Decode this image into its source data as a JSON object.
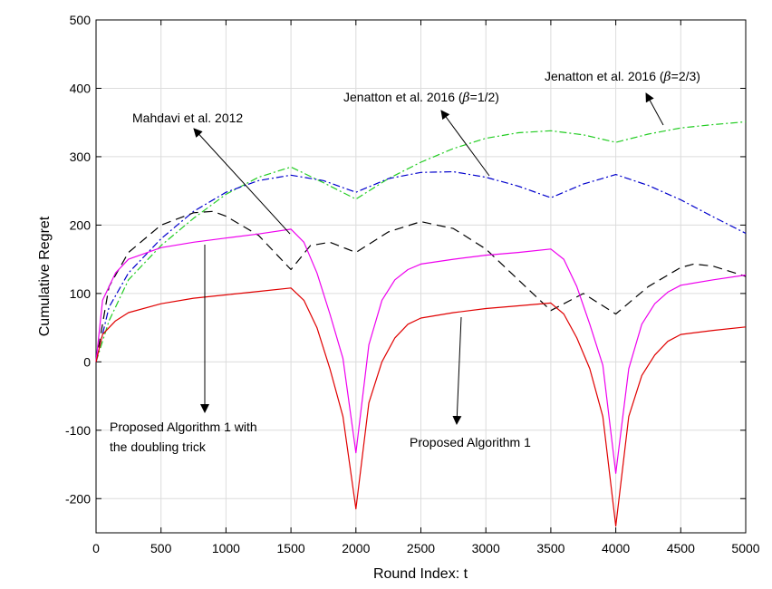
{
  "chart_data": {
    "type": "line",
    "title": "",
    "xlabel": "Round Index: t",
    "ylabel": "Cumulative Regret",
    "xlim": [
      0,
      5000
    ],
    "ylim": [
      -250,
      500
    ],
    "xticks": [
      0,
      500,
      1000,
      1500,
      2000,
      2500,
      3000,
      3500,
      4000,
      4500,
      5000
    ],
    "yticks": [
      -200,
      -100,
      0,
      100,
      200,
      300,
      400,
      500
    ],
    "grid": true,
    "series": [
      {
        "style": "green-dashdot",
        "color": "#22cc22",
        "x": [
          0,
          100,
          250,
          500,
          750,
          1000,
          1250,
          1500,
          1750,
          2000,
          2250,
          2500,
          2750,
          3000,
          3250,
          3500,
          3750,
          4000,
          4250,
          4500,
          4750,
          5000
        ],
        "y": [
          0,
          60,
          120,
          170,
          210,
          245,
          270,
          285,
          262,
          238,
          268,
          292,
          312,
          327,
          335,
          338,
          332,
          321,
          333,
          342,
          347,
          351
        ]
      },
      {
        "style": "blue-dashdot",
        "color": "#0000cc",
        "x": [
          0,
          100,
          250,
          500,
          750,
          1000,
          1250,
          1500,
          1750,
          2000,
          2250,
          2500,
          2750,
          3000,
          3250,
          3500,
          3750,
          4000,
          4250,
          4500,
          4750,
          5000
        ],
        "y": [
          0,
          80,
          130,
          180,
          220,
          248,
          265,
          273,
          265,
          248,
          268,
          277,
          278,
          270,
          257,
          240,
          260,
          274,
          258,
          237,
          212,
          188
        ]
      },
      {
        "style": "black-dashed",
        "color": "#000000",
        "x": [
          0,
          100,
          250,
          500,
          750,
          900,
          1000,
          1250,
          1400,
          1500,
          1650,
          1800,
          2000,
          2250,
          2500,
          2750,
          3000,
          3250,
          3500,
          3750,
          4000,
          4250,
          4500,
          4600,
          4750,
          5000
        ],
        "y": [
          0,
          110,
          160,
          200,
          218,
          220,
          213,
          185,
          155,
          135,
          170,
          175,
          160,
          190,
          205,
          195,
          165,
          120,
          75,
          100,
          70,
          110,
          138,
          143,
          140,
          125
        ]
      },
      {
        "style": "magenta-solid",
        "color": "#ee00ee",
        "x": [
          0,
          50,
          150,
          250,
          500,
          750,
          1000,
          1250,
          1500,
          1600,
          1700,
          1800,
          1900,
          2000,
          2100,
          2200,
          2300,
          2400,
          2500,
          2750,
          3000,
          3250,
          3500,
          3600,
          3700,
          3800,
          3900,
          4000,
          4100,
          4200,
          4300,
          4400,
          4500,
          4750,
          5000
        ],
        "y": [
          0,
          90,
          130,
          150,
          167,
          175,
          181,
          187,
          194,
          175,
          130,
          70,
          5,
          -133,
          25,
          90,
          120,
          135,
          143,
          150,
          156,
          160,
          165,
          150,
          110,
          55,
          -5,
          -163,
          -10,
          55,
          85,
          102,
          112,
          120,
          127
        ]
      },
      {
        "style": "red-solid",
        "color": "#e00000",
        "x": [
          0,
          50,
          150,
          250,
          500,
          750,
          1000,
          1250,
          1500,
          1600,
          1700,
          1800,
          1900,
          2000,
          2100,
          2200,
          2300,
          2400,
          2500,
          2750,
          3000,
          3250,
          3500,
          3600,
          3700,
          3800,
          3900,
          4000,
          4100,
          4200,
          4300,
          4400,
          4500,
          4750,
          5000
        ],
        "y": [
          0,
          40,
          60,
          72,
          85,
          93,
          98,
          103,
          108,
          90,
          50,
          -10,
          -80,
          -215,
          -60,
          0,
          35,
          55,
          64,
          72,
          78,
          82,
          86,
          70,
          35,
          -10,
          -80,
          -240,
          -80,
          -20,
          10,
          30,
          40,
          46,
          51
        ]
      }
    ],
    "annotations": [
      {
        "text": "Mahdavi et al. 2012",
        "point_to": [
          750,
          225
        ]
      },
      {
        "text": "Jenatton et al. 2016 (",
        "beta": "β",
        "suffix": "=1/2)",
        "point_to": [
          2750,
          278
        ]
      },
      {
        "text": "Jenatton et al. 2016 (",
        "beta": "β",
        "suffix": "=2/3)",
        "point_to": [
          4370,
          337
        ]
      },
      {
        "text_line1": "Proposed Algorithm 1 with",
        "text_line2": "the doubling trick",
        "point_to": [
          850,
          -75
        ]
      },
      {
        "text": "Proposed Algorithm 1",
        "point_to": [
          2750,
          -88
        ]
      }
    ]
  }
}
